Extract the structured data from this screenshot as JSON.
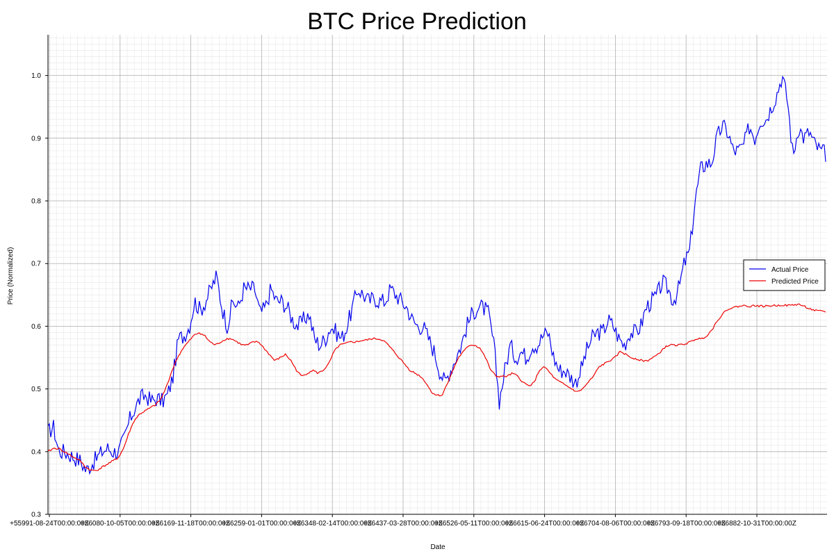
{
  "chart_data": {
    "type": "line",
    "title": "BTC Price Prediction",
    "xlabel": "Date",
    "ylabel": "Price (Normalized)",
    "x_tick_labels": [
      "+55991-08-24T00:00:00Z",
      "+56080-10-05T00:00:00Z",
      "+56169-11-18T00:00:00Z",
      "+56259-01-01T00:00:00Z",
      "+56348-02-14T00:00:00Z",
      "+56437-03-28T00:00:00Z",
      "+56526-05-11T00:00:00Z",
      "+56615-06-24T00:00:00Z",
      "+56704-08-06T00:00:00Z",
      "+56793-09-18T00:00:00Z",
      "+56882-10-31T00:00:00Z"
    ],
    "ylim": [
      0.3,
      1.065
    ],
    "y_ticks": [
      0.3,
      0.4,
      0.5,
      0.6,
      0.7,
      0.8,
      0.9,
      1.0
    ],
    "y_tick_labels": [
      "0.3",
      "0.4",
      "0.5",
      "0.6",
      "0.7",
      "0.8",
      "0.9",
      "1.0"
    ],
    "grid": true,
    "legend": "right",
    "x_samples": "daily",
    "series": [
      {
        "name": "Actual Price",
        "color": "#0000ee",
        "values": [
          0.43,
          0.44,
          0.4,
          0.4,
          0.395,
          0.39,
          0.385,
          0.37,
          0.38,
          0.39,
          0.4,
          0.405,
          0.4,
          0.4,
          0.42,
          0.45,
          0.47,
          0.485,
          0.49,
          0.48,
          0.485,
          0.48,
          0.49,
          0.52,
          0.58,
          0.585,
          0.6,
          0.64,
          0.625,
          0.64,
          0.66,
          0.68,
          0.63,
          0.6,
          0.64,
          0.63,
          0.66,
          0.66,
          0.66,
          0.62,
          0.63,
          0.66,
          0.64,
          0.64,
          0.63,
          0.61,
          0.6,
          0.61,
          0.62,
          0.58,
          0.57,
          0.58,
          0.6,
          0.59,
          0.58,
          0.6,
          0.63,
          0.66,
          0.65,
          0.64,
          0.645,
          0.64,
          0.64,
          0.66,
          0.65,
          0.64,
          0.63,
          0.61,
          0.6,
          0.6,
          0.58,
          0.56,
          0.53,
          0.51,
          0.53,
          0.55,
          0.57,
          0.6,
          0.62,
          0.63,
          0.63,
          0.62,
          0.57,
          0.48,
          0.53,
          0.57,
          0.55,
          0.56,
          0.55,
          0.57,
          0.57,
          0.585,
          0.59,
          0.55,
          0.53,
          0.53,
          0.52,
          0.51,
          0.53,
          0.56,
          0.58,
          0.59,
          0.59,
          0.61,
          0.6,
          0.58,
          0.57,
          0.59,
          0.59,
          0.6,
          0.63,
          0.64,
          0.65,
          0.67,
          0.66,
          0.64,
          0.66,
          0.7,
          0.72,
          0.8,
          0.85,
          0.86,
          0.86,
          0.9,
          0.92,
          0.91,
          0.88,
          0.88,
          0.89,
          0.92,
          0.9,
          0.93,
          0.93,
          0.95,
          0.97,
          1.0,
          0.96,
          0.87,
          0.92,
          0.9,
          0.91,
          0.89,
          0.88,
          0.875
        ]
      },
      {
        "name": "Predicted Price",
        "color": "#ee0000",
        "values": [
          0.4,
          0.405,
          0.405,
          0.4,
          0.395,
          0.39,
          0.385,
          0.375,
          0.37,
          0.37,
          0.375,
          0.38,
          0.385,
          0.39,
          0.405,
          0.43,
          0.45,
          0.46,
          0.465,
          0.47,
          0.475,
          0.485,
          0.505,
          0.53,
          0.55,
          0.565,
          0.575,
          0.585,
          0.59,
          0.585,
          0.575,
          0.57,
          0.575,
          0.58,
          0.58,
          0.575,
          0.57,
          0.57,
          0.575,
          0.575,
          0.565,
          0.555,
          0.545,
          0.55,
          0.555,
          0.545,
          0.53,
          0.52,
          0.525,
          0.53,
          0.525,
          0.53,
          0.54,
          0.56,
          0.57,
          0.572,
          0.575,
          0.575,
          0.577,
          0.578,
          0.58,
          0.58,
          0.578,
          0.57,
          0.56,
          0.55,
          0.54,
          0.53,
          0.525,
          0.52,
          0.51,
          0.495,
          0.49,
          0.49,
          0.51,
          0.53,
          0.55,
          0.56,
          0.57,
          0.57,
          0.565,
          0.55,
          0.53,
          0.52,
          0.52,
          0.52,
          0.525,
          0.52,
          0.51,
          0.505,
          0.51,
          0.53,
          0.535,
          0.525,
          0.515,
          0.51,
          0.505,
          0.5,
          0.495,
          0.5,
          0.51,
          0.52,
          0.535,
          0.54,
          0.545,
          0.55,
          0.56,
          0.555,
          0.55,
          0.548,
          0.545,
          0.545,
          0.55,
          0.555,
          0.565,
          0.57,
          0.57,
          0.57,
          0.572,
          0.575,
          0.58,
          0.58,
          0.585,
          0.595,
          0.61,
          0.62,
          0.628,
          0.63,
          0.632,
          0.633,
          0.632,
          0.633,
          0.632,
          0.632,
          0.633,
          0.633,
          0.634,
          0.633,
          0.634,
          0.635,
          0.632,
          0.628,
          0.625,
          0.624,
          0.623
        ]
      }
    ]
  }
}
